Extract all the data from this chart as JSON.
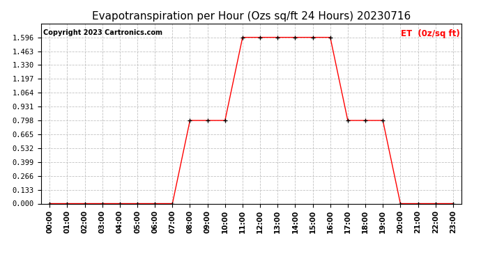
{
  "title": "Evapotranspiration per Hour (Ozs sq/ft 24 Hours) 20230716",
  "copyright": "Copyright 2023 Cartronics.com",
  "legend_label": "ET  (0z/sq ft)",
  "hours": [
    "00:00",
    "01:00",
    "02:00",
    "03:00",
    "04:00",
    "05:00",
    "06:00",
    "07:00",
    "08:00",
    "09:00",
    "10:00",
    "11:00",
    "12:00",
    "13:00",
    "14:00",
    "15:00",
    "16:00",
    "17:00",
    "18:00",
    "19:00",
    "20:00",
    "21:00",
    "22:00",
    "23:00"
  ],
  "values": [
    0.0,
    0.0,
    0.0,
    0.0,
    0.0,
    0.0,
    0.0,
    0.0,
    0.798,
    0.798,
    0.798,
    1.596,
    1.596,
    1.596,
    1.596,
    1.596,
    1.596,
    0.798,
    0.798,
    0.798,
    0.0,
    0.0,
    0.0,
    0.0
  ],
  "line_color": "#ff0000",
  "marker_color": "#000000",
  "background_color": "#ffffff",
  "grid_color": "#bbbbbb",
  "title_color": "#000000",
  "copyright_color": "#000000",
  "legend_color": "#ff0000",
  "ylim": [
    0.0,
    1.729
  ],
  "yticks": [
    0.0,
    0.133,
    0.266,
    0.399,
    0.532,
    0.665,
    0.798,
    0.931,
    1.064,
    1.197,
    1.33,
    1.463,
    1.596
  ],
  "title_fontsize": 11,
  "copyright_fontsize": 7,
  "legend_fontsize": 8.5,
  "tick_fontsize": 7.5
}
